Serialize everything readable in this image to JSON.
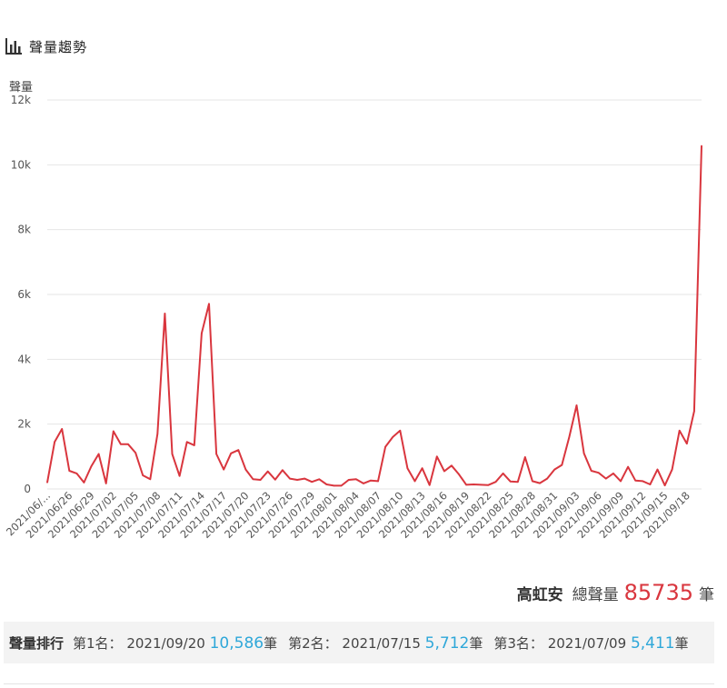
{
  "header": {
    "title": "聲量趨勢",
    "icon": "bar-chart-icon"
  },
  "colors": {
    "line": "#d9363e",
    "accent": "#2ea7d9",
    "total": "#d9363e"
  },
  "total": {
    "name": "高虹安",
    "label": "總聲量",
    "value": "85735",
    "unit": "筆"
  },
  "ranking": {
    "label": "聲量排行",
    "entries": [
      {
        "rank": "第1名：",
        "date": "2021/09/20",
        "count": "10,586",
        "unit": "筆"
      },
      {
        "rank": "第2名：",
        "date": "2021/07/15",
        "count": "5,712",
        "unit": "筆"
      },
      {
        "rank": "第3名：",
        "date": "2021/07/09",
        "count": "5,411",
        "unit": "筆"
      }
    ]
  },
  "chart_data": {
    "type": "line",
    "ylabel": "聲量",
    "ylim": [
      0,
      12000
    ],
    "yticks": [
      0,
      2000,
      4000,
      6000,
      8000,
      10000,
      12000
    ],
    "ytick_labels": [
      "0",
      "2k",
      "4k",
      "6k",
      "8k",
      "10k",
      "12k"
    ],
    "grid": true,
    "start_date": "2021-06-23",
    "xtick_labels": [
      "2021/06/...",
      "2021/06/26",
      "2021/06/29",
      "2021/07/02",
      "2021/07/05",
      "2021/07/08",
      "2021/07/11",
      "2021/07/14",
      "2021/07/17",
      "2021/07/20",
      "2021/07/23",
      "2021/07/26",
      "2021/07/29",
      "2021/08/01",
      "2021/08/04",
      "2021/08/07",
      "2021/08/10",
      "2021/08/13",
      "2021/08/16",
      "2021/08/19",
      "2021/08/22",
      "2021/08/25",
      "2021/08/28",
      "2021/08/31",
      "2021/09/03",
      "2021/09/06",
      "2021/09/09",
      "2021/09/12",
      "2021/09/15",
      "2021/09/18"
    ],
    "values": [
      200,
      1450,
      1850,
      560,
      480,
      200,
      700,
      1080,
      170,
      1780,
      1380,
      1380,
      1120,
      420,
      300,
      1700,
      5411,
      1080,
      400,
      1450,
      1350,
      4800,
      5712,
      1080,
      600,
      1100,
      1200,
      600,
      300,
      280,
      540,
      290,
      580,
      320,
      280,
      320,
      220,
      300,
      140,
      100,
      100,
      280,
      300,
      170,
      260,
      240,
      1300,
      1600,
      1800,
      640,
      240,
      640,
      120,
      1000,
      550,
      720,
      450,
      130,
      140,
      130,
      120,
      220,
      480,
      230,
      220,
      980,
      240,
      180,
      320,
      600,
      740,
      1600,
      2580,
      1100,
      560,
      500,
      320,
      480,
      240,
      680,
      260,
      240,
      140,
      600,
      110,
      600,
      1800,
      1400,
      2400,
      10586
    ]
  }
}
